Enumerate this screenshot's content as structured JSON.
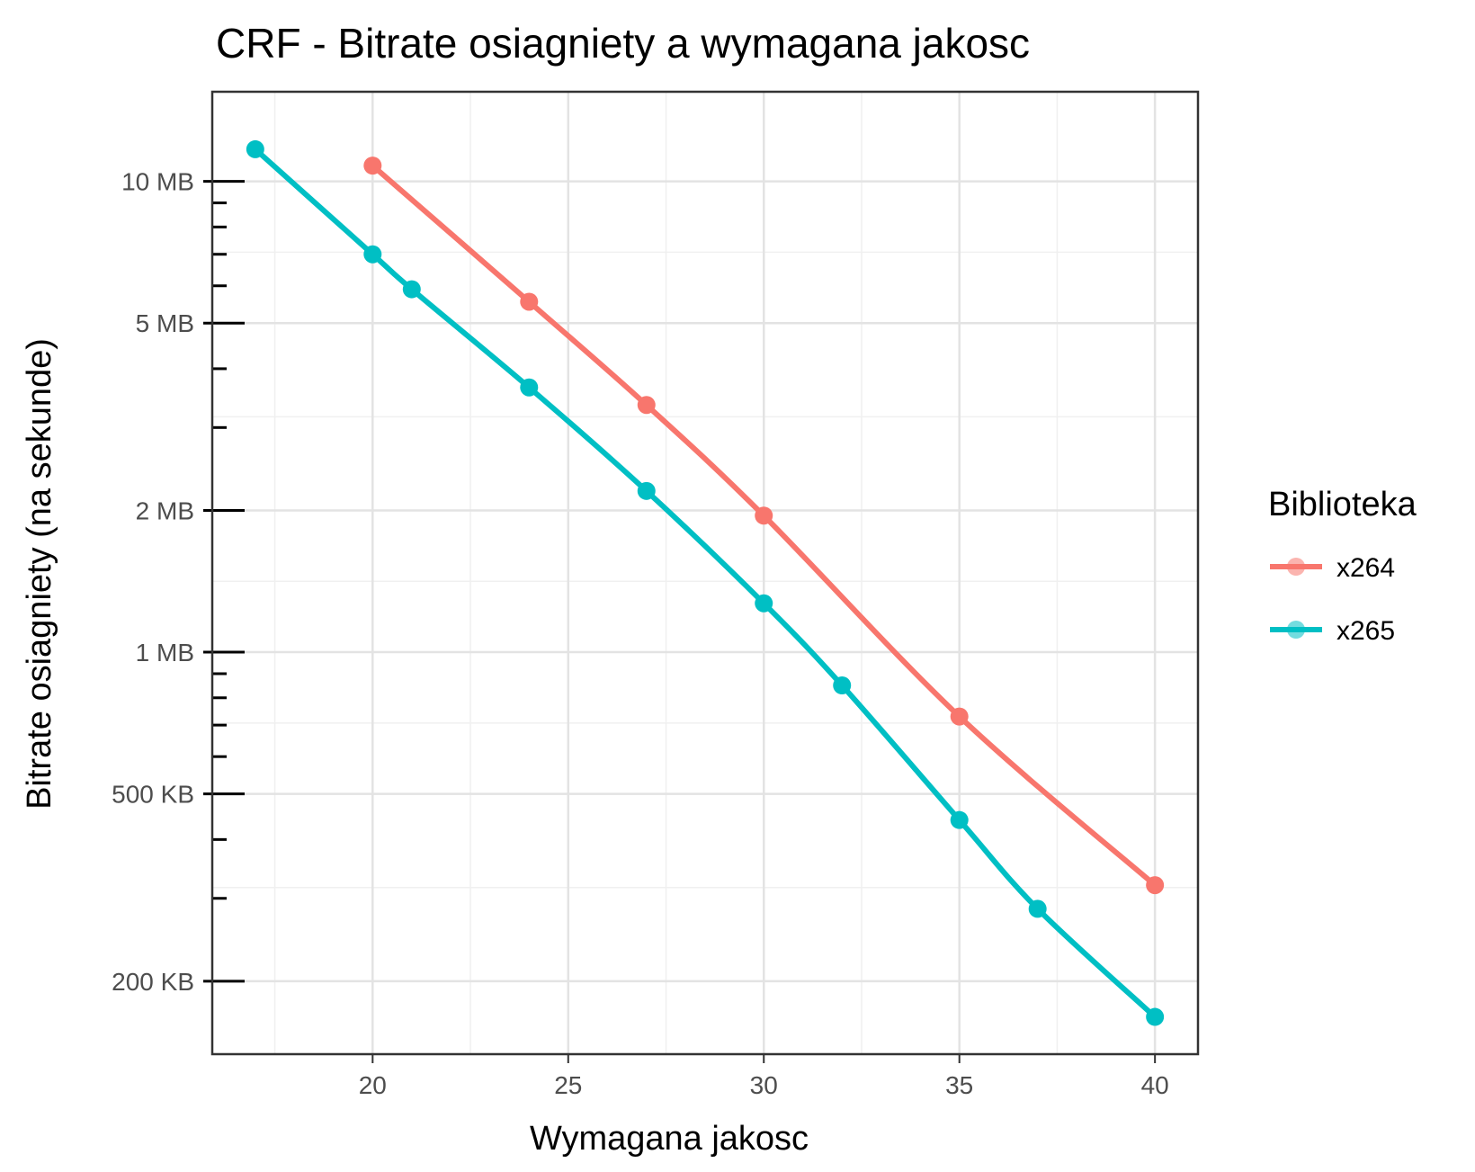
{
  "chart_data": {
    "type": "line",
    "title": "CRF - Bitrate osiagniety a wymagana jakosc",
    "xlabel": "Wymagana jakosc",
    "ylabel": "Bitrate osiagniety (na sekunde)",
    "x_scale": "linear",
    "y_scale": "log10",
    "xlim": [
      15.9,
      41.1
    ],
    "ylim_bytes": [
      140000,
      15500000
    ],
    "x_ticks": [
      20,
      25,
      30,
      35,
      40
    ],
    "x_tick_labels": [
      "20",
      "25",
      "30",
      "35",
      "40"
    ],
    "y_ticks_bytes": [
      200000,
      500000,
      1000000,
      2000000,
      5000000,
      10000000
    ],
    "y_tick_labels": [
      "200 KB",
      "500 KB",
      "1 MB",
      "2 MB",
      "5 MB",
      "10 MB"
    ],
    "y_minor_ticks_bytes": [
      300000,
      400000,
      600000,
      700000,
      800000,
      900000,
      3000000,
      4000000,
      6000000,
      7000000,
      8000000,
      9000000
    ],
    "grid": true,
    "legend": {
      "title": "Biblioteka",
      "position": "right"
    },
    "series": [
      {
        "name": "x264",
        "color": "#F8766D",
        "x": [
          20,
          24,
          27,
          30,
          35,
          40
        ],
        "y_bytes": [
          10800000,
          5550000,
          3350000,
          1950000,
          730000,
          320000
        ]
      },
      {
        "name": "x265",
        "color": "#00BFC4",
        "x": [
          17,
          20,
          21,
          24,
          27,
          30,
          32,
          35,
          37,
          40
        ],
        "y_bytes": [
          11700000,
          7000000,
          5900000,
          3650000,
          2200000,
          1270000,
          850000,
          440000,
          285000,
          168000
        ]
      }
    ]
  }
}
